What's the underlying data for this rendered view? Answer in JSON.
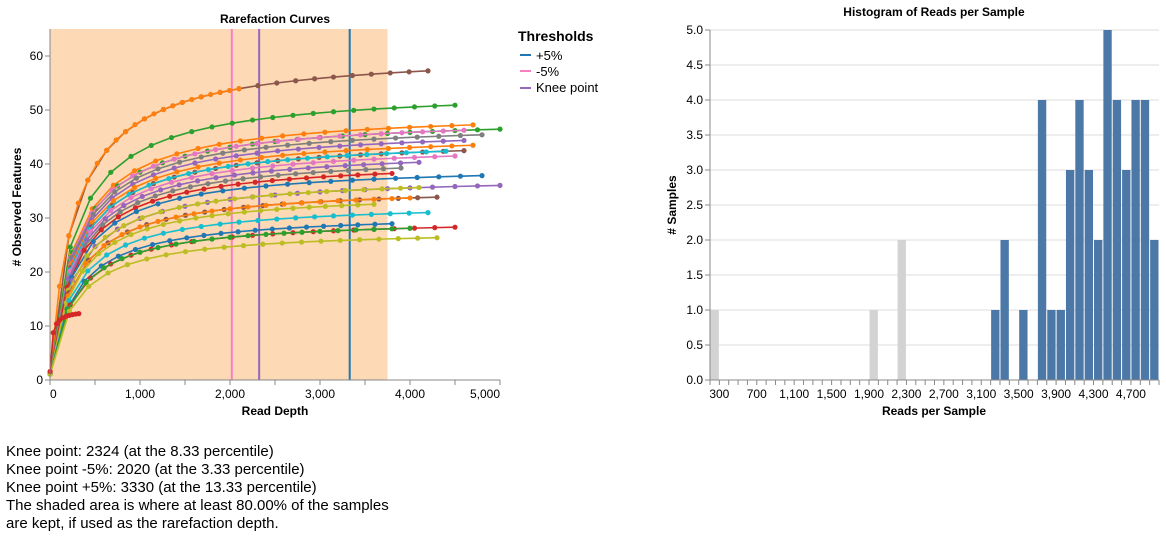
{
  "colors": {
    "shade": "#fdd9b5",
    "plus5": "#1f77b4",
    "minus5": "#f781bf",
    "knee": "#9467bd",
    "hist_kept": "#4c78a8",
    "hist_dropped": "#d3d3d3",
    "axis": "#888888",
    "grid": "#dddddd"
  },
  "chart_data": [
    {
      "type": "line",
      "title": "Rarefaction Curves",
      "xlabel": "Read Depth",
      "ylabel": "# Observed Features",
      "xlim": [
        0,
        5000
      ],
      "ylim": [
        0,
        65
      ],
      "xticks": [
        0,
        1000,
        2000,
        3000,
        4000,
        5000
      ],
      "xtick_labels": [
        "0",
        "1,000",
        "2,000",
        "3,000",
        "4,000",
        "5,000"
      ],
      "yticks": [
        0,
        10,
        20,
        30,
        40,
        50,
        60
      ],
      "grid": false,
      "shaded_region": [
        0,
        3750
      ],
      "vlines": [
        {
          "legend": "+5%",
          "x": 3330,
          "color": "#1f77b4"
        },
        {
          "legend": "-5%",
          "x": 2020,
          "color": "#f781bf"
        },
        {
          "legend": "Knee point",
          "x": 2324,
          "color": "#9467bd"
        }
      ],
      "legend": {
        "title": "Thresholds",
        "position": "right",
        "entries": [
          "+5%",
          "-5%",
          "Knee point"
        ]
      },
      "series": [
        {
          "color": "#8c564b",
          "max_depth": 4200,
          "plateau": 61
        },
        {
          "color": "#ff7f0e",
          "max_depth": 2100,
          "plateau": 61
        },
        {
          "color": "#2ca02c",
          "max_depth": 4500,
          "plateau": 54
        },
        {
          "color": "#ff7f0e",
          "max_depth": 4700,
          "plateau": 50
        },
        {
          "color": "#2ca02c",
          "max_depth": 5000,
          "plateau": 49
        },
        {
          "color": "#e377c2",
          "max_depth": 4600,
          "plateau": 49
        },
        {
          "color": "#7f7f7f",
          "max_depth": 4800,
          "plateau": 48
        },
        {
          "color": "#9467bd",
          "max_depth": 4600,
          "plateau": 47
        },
        {
          "color": "#ff7f0e",
          "max_depth": 4700,
          "plateau": 46
        },
        {
          "color": "#8c564b",
          "max_depth": 4600,
          "plateau": 45
        },
        {
          "color": "#17becf",
          "max_depth": 4400,
          "plateau": 45
        },
        {
          "color": "#e377c2",
          "max_depth": 4500,
          "plateau": 44
        },
        {
          "color": "#9467bd",
          "max_depth": 4100,
          "plateau": 43
        },
        {
          "color": "#7f7f7f",
          "max_depth": 3900,
          "plateau": 42
        },
        {
          "color": "#d62728",
          "max_depth": 3800,
          "plateau": 41
        },
        {
          "color": "#1f77b4",
          "max_depth": 4800,
          "plateau": 40
        },
        {
          "color": "#9467bd",
          "max_depth": 5000,
          "plateau": 38
        },
        {
          "color": "#bcbd22",
          "max_depth": 4100,
          "plateau": 38
        },
        {
          "color": "#8c564b",
          "max_depth": 4300,
          "plateau": 36
        },
        {
          "color": "#ff7f0e",
          "max_depth": 4000,
          "plateau": 36
        },
        {
          "color": "#bcbd22",
          "max_depth": 3600,
          "plateau": 35
        },
        {
          "color": "#17becf",
          "max_depth": 4200,
          "plateau": 33
        },
        {
          "color": "#1f77b4",
          "max_depth": 3800,
          "plateau": 31
        },
        {
          "color": "#d62728",
          "max_depth": 4500,
          "plateau": 30
        },
        {
          "color": "#2ca02c",
          "max_depth": 4000,
          "plateau": 30
        },
        {
          "color": "#bcbd22",
          "max_depth": 4300,
          "plateau": 28
        },
        {
          "color": "#d62728",
          "max_depth": 320,
          "plateau": 13
        }
      ]
    },
    {
      "type": "bar",
      "title": "Histogram of Reads per Sample",
      "xlabel": "Reads per Sample",
      "ylabel": "# Samples",
      "xlim": [
        200,
        5000
      ],
      "ylim": [
        0,
        5
      ],
      "bin_width": 100,
      "yticks": [
        0,
        0.5,
        1,
        1.5,
        2,
        2.5,
        3,
        3.5,
        4,
        4.5,
        5
      ],
      "ytick_labels": [
        "0.0",
        "0.5",
        "1.0",
        "1.5",
        "2.0",
        "2.5",
        "3.0",
        "3.5",
        "4.0",
        "4.5",
        "5.0"
      ],
      "xtick_labels": [
        "300",
        "700",
        "1,100",
        "1,500",
        "1,900",
        "2,300",
        "2,700",
        "3,100",
        "3,500",
        "3,900",
        "4,300",
        "4,700"
      ],
      "xtick_values": [
        300,
        700,
        1100,
        1500,
        1900,
        2300,
        2700,
        3100,
        3500,
        3900,
        4300,
        4700
      ],
      "bins": [
        {
          "x0": 200,
          "count": 1,
          "kept": false
        },
        {
          "x0": 1900,
          "count": 1,
          "kept": false
        },
        {
          "x0": 2200,
          "count": 2,
          "kept": false
        },
        {
          "x0": 3200,
          "count": 1,
          "kept": true
        },
        {
          "x0": 3300,
          "count": 2,
          "kept": true
        },
        {
          "x0": 3500,
          "count": 1,
          "kept": true
        },
        {
          "x0": 3700,
          "count": 4,
          "kept": true
        },
        {
          "x0": 3800,
          "count": 1,
          "kept": true
        },
        {
          "x0": 3900,
          "count": 1,
          "kept": true
        },
        {
          "x0": 4000,
          "count": 3,
          "kept": true
        },
        {
          "x0": 4100,
          "count": 4,
          "kept": true
        },
        {
          "x0": 4200,
          "count": 3,
          "kept": true
        },
        {
          "x0": 4300,
          "count": 2,
          "kept": true
        },
        {
          "x0": 4400,
          "count": 5,
          "kept": true
        },
        {
          "x0": 4500,
          "count": 4,
          "kept": true
        },
        {
          "x0": 4600,
          "count": 3,
          "kept": true
        },
        {
          "x0": 4700,
          "count": 4,
          "kept": true
        },
        {
          "x0": 4800,
          "count": 4,
          "kept": true
        },
        {
          "x0": 4900,
          "count": 2,
          "kept": true
        }
      ]
    }
  ],
  "notes": {
    "knee": "Knee point: 2324 (at the 8.33 percentile)",
    "minus": "Knee point -5%: 2020 (at the 3.33 percentile)",
    "plus": "Knee point +5%: 3330 (at the 13.33 percentile)",
    "shade_line1": "The shaded area is where at least 80.00% of the samples",
    "shade_line2": "are kept, if used as the rarefaction depth."
  }
}
